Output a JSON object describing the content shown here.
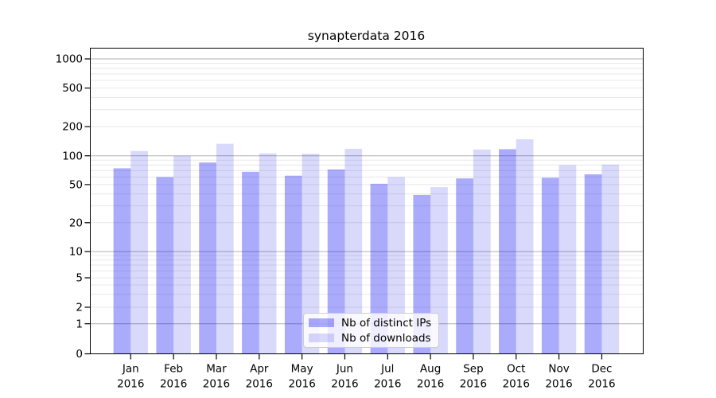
{
  "chart_data": {
    "type": "bar",
    "title": "synapterdata 2016",
    "categories": [
      "Jan",
      "Feb",
      "Mar",
      "Apr",
      "May",
      "Jun",
      "Jul",
      "Aug",
      "Sep",
      "Oct",
      "Nov",
      "Dec"
    ],
    "category_year": "2016",
    "series": [
      {
        "name": "Nb of distinct IPs",
        "color": "rgba(10,10,245,0.34)",
        "values": [
          74,
          60,
          85,
          68,
          62,
          72,
          51,
          39,
          58,
          117,
          59,
          64
        ]
      },
      {
        "name": "Nb of downloads",
        "color": "rgba(20,20,230,0.16)",
        "values": [
          112,
          100,
          133,
          106,
          105,
          118,
          60,
          47,
          116,
          148,
          80,
          81
        ]
      }
    ],
    "yscale": "symlog",
    "y_ticks": [
      1000,
      500,
      200,
      100,
      50,
      20,
      10,
      5,
      2,
      1,
      0
    ],
    "ylim": [
      0,
      1400
    ],
    "grid": {
      "major_values": [
        1,
        10,
        100,
        1000
      ],
      "minor_subs": [
        2,
        3,
        4,
        5,
        6,
        7,
        8,
        9
      ],
      "major_color": "#b0b0b0",
      "minor_color": "#e8e8e8"
    },
    "legend_position": "lower center",
    "text_color": "#000000",
    "spine_color": "#000000"
  }
}
